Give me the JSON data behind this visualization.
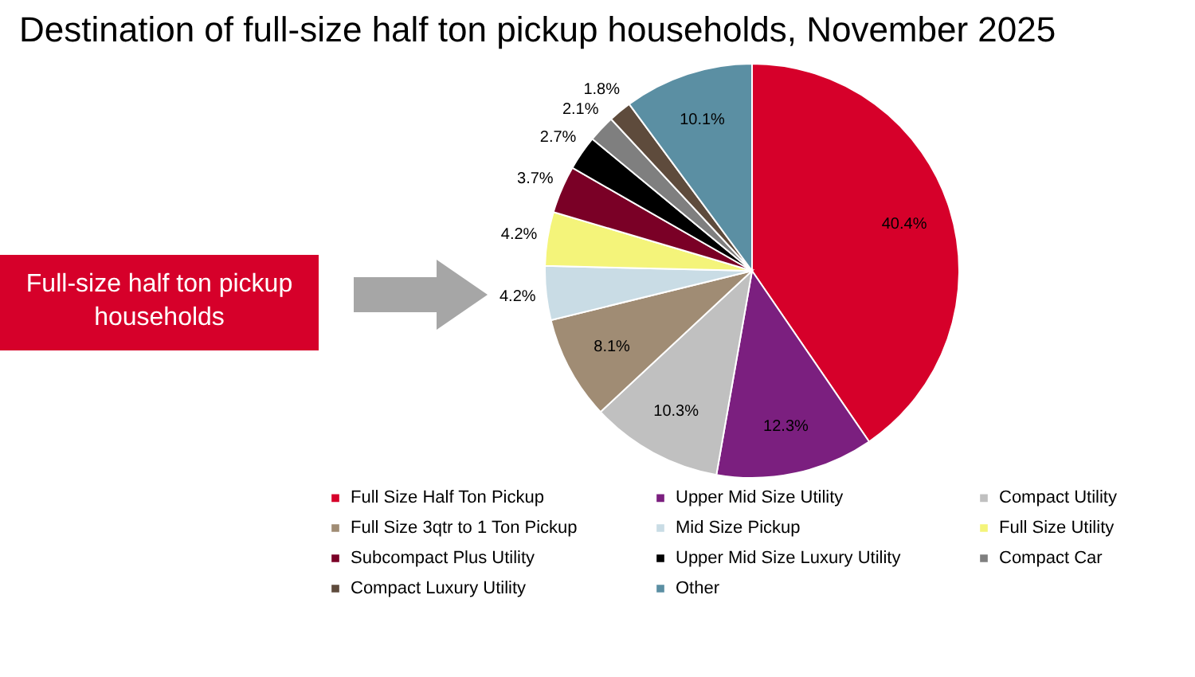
{
  "chart_data": {
    "type": "pie",
    "title": "Destination of full-size half ton pickup households, November 2025",
    "categories": [
      "Full Size Half Ton Pickup",
      "Upper Mid Size Utility",
      "Compact Utility",
      "Full Size 3qtr to 1 Ton Pickup",
      "Mid Size Pickup",
      "Full Size Utility",
      "Subcompact Plus Utility",
      "Upper Mid Size Luxury Utility",
      "Compact Car",
      "Compact Luxury Utility",
      "Other"
    ],
    "values": [
      40.4,
      12.3,
      10.3,
      8.1,
      4.2,
      4.2,
      3.7,
      2.7,
      2.1,
      1.8,
      10.1
    ],
    "value_labels": [
      "40.4%",
      "12.3%",
      "10.3%",
      "8.1%",
      "4.2%",
      "4.2%",
      "3.7%",
      "2.7%",
      "2.1%",
      "1.8%",
      "10.1%"
    ],
    "colors": [
      "#d6002a",
      "#7b1f7f",
      "#c0c0c0",
      "#a08c74",
      "#c9dce5",
      "#f4f47a",
      "#7a0026",
      "#000000",
      "#7f7f7f",
      "#5e4b3c",
      "#5b8fa3"
    ],
    "legend": "bottom",
    "annotations": [
      "Full-size half ton pickup households"
    ]
  }
}
